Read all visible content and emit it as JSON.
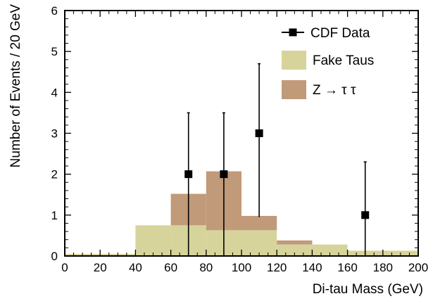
{
  "chart_data": {
    "type": "bar",
    "xlabel": "Di-tau Mass (GeV)",
    "ylabel": "Number of Events / 20 GeV",
    "xlim": [
      0,
      200
    ],
    "ylim": [
      0,
      6
    ],
    "x_ticks": [
      0,
      20,
      40,
      60,
      80,
      100,
      120,
      140,
      160,
      180,
      200
    ],
    "y_ticks": [
      0,
      1,
      2,
      3,
      4,
      5,
      6
    ],
    "bin_edges": [
      0,
      20,
      40,
      60,
      80,
      100,
      120,
      140,
      160,
      180,
      200
    ],
    "series": [
      {
        "name": "Fake Taus",
        "kind": "stacked-histogram",
        "color": "#d6d49a",
        "values": [
          0.05,
          0.05,
          0.75,
          0.75,
          0.63,
          0.63,
          0.28,
          0.28,
          0.13,
          0.13
        ]
      },
      {
        "name": "Z → τ τ",
        "kind": "stacked-histogram",
        "color": "#c19a7a",
        "values": [
          0.0,
          0.0,
          0.0,
          0.77,
          1.44,
          0.35,
          0.1,
          0.0,
          0.0,
          0.0
        ]
      },
      {
        "name": "CDF Data",
        "kind": "points-with-errors",
        "color": "#000000",
        "points": [
          {
            "x": 70,
            "y": 2,
            "ylow": 0,
            "yhigh": 3.5
          },
          {
            "x": 90,
            "y": 2,
            "ylow": 0,
            "yhigh": 3.5
          },
          {
            "x": 110,
            "y": 3,
            "ylow": 0.95,
            "yhigh": 4.7
          },
          {
            "x": 170,
            "y": 1,
            "ylow": 0,
            "yhigh": 2.3
          }
        ]
      }
    ],
    "legend": [
      {
        "label": "CDF Data",
        "kind": "marker"
      },
      {
        "label": "Fake Taus",
        "kind": "box",
        "color": "#d6d49a"
      },
      {
        "label": "Z → τ τ",
        "kind": "box",
        "color": "#c19a7a"
      }
    ],
    "legend_position": "top-right",
    "grid": false
  }
}
